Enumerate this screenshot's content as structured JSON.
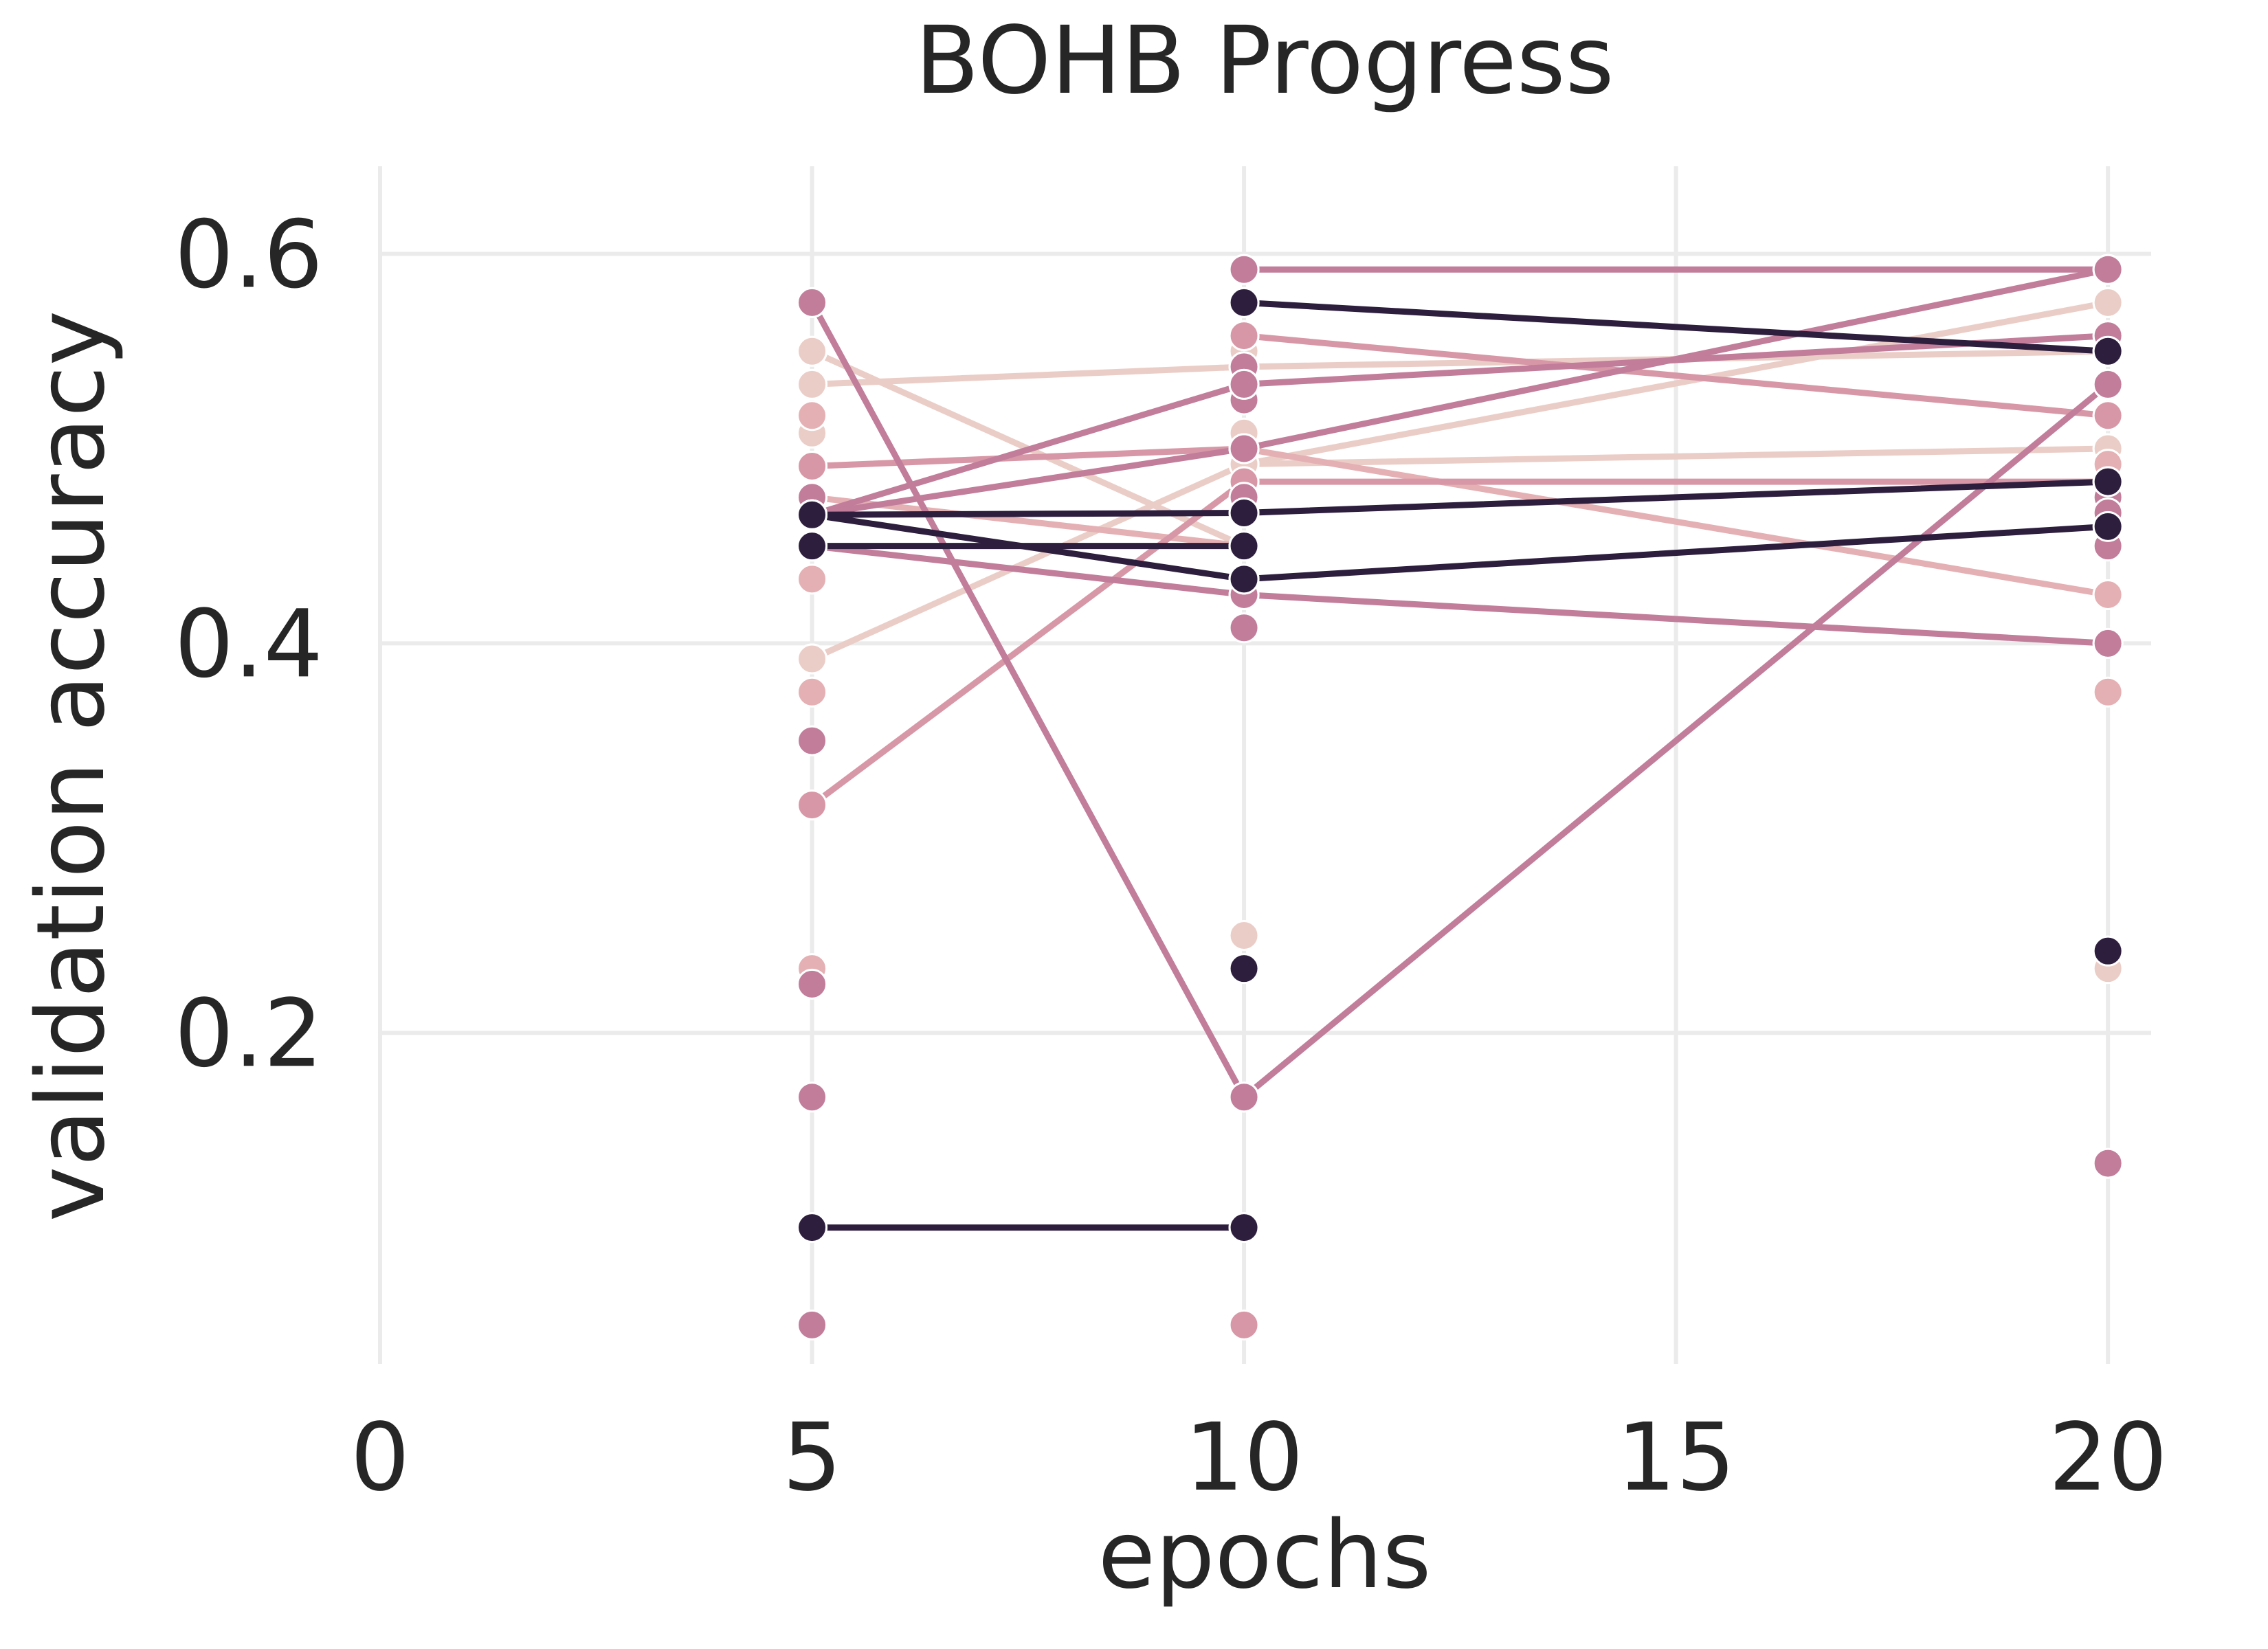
{
  "chart_data": {
    "type": "line",
    "title": "BOHB Progress",
    "xlabel": "epochs",
    "ylabel": "validation accuracy",
    "xlim": [
      0,
      20.5
    ],
    "ylim": [
      0.03,
      0.645
    ],
    "xticks": [
      0,
      5,
      10,
      15,
      20
    ],
    "xtick_labels": [
      "0",
      "5",
      "10",
      "15",
      "20"
    ],
    "yticks": [
      0.2,
      0.4,
      0.6
    ],
    "ytick_labels": [
      "0.2",
      "0.4",
      "0.6"
    ],
    "grid": true,
    "legend": "none",
    "palette": {
      "dark": "#2d1e3e",
      "mauve": "#c17d9a",
      "pink": "#d797a6",
      "rose": "#e4b0b4",
      "light": "#ebcdc7"
    },
    "series": [
      {
        "color": "dark",
        "x": [
          5,
          10
        ],
        "y": [
          0.466,
          0.433
        ]
      },
      {
        "color": "dark",
        "x": [
          10,
          20
        ],
        "y": [
          0.433,
          0.46
        ]
      },
      {
        "color": "dark",
        "x": [
          5,
          10
        ],
        "y": [
          0.45,
          0.45
        ]
      },
      {
        "color": "dark",
        "x": [
          5,
          10,
          20
        ],
        "y": [
          0.466,
          0.467,
          0.483
        ]
      },
      {
        "color": "dark",
        "x": [
          10,
          20
        ],
        "y": [
          0.575,
          0.55
        ]
      },
      {
        "color": "dark",
        "x": [
          5,
          10
        ],
        "y": [
          0.1,
          0.1
        ]
      },
      {
        "color": "mauve",
        "x": [
          5,
          10,
          20
        ],
        "y": [
          0.575,
          0.167,
          0.533
        ]
      },
      {
        "color": "mauve",
        "x": [
          10,
          20
        ],
        "y": [
          0.592,
          0.592
        ]
      },
      {
        "color": "mauve",
        "x": [
          5,
          10,
          20
        ],
        "y": [
          0.466,
          0.533,
          0.558
        ]
      },
      {
        "color": "mauve",
        "x": [
          5,
          10,
          20
        ],
        "y": [
          0.45,
          0.425,
          0.4
        ]
      },
      {
        "color": "mauve",
        "x": [
          5,
          10,
          20
        ],
        "y": [
          0.466,
          0.5,
          0.592
        ]
      },
      {
        "color": "pink",
        "x": [
          5,
          10,
          20
        ],
        "y": [
          0.317,
          0.483,
          0.483
        ]
      },
      {
        "color": "pink",
        "x": [
          5,
          10
        ],
        "y": [
          0.491,
          0.5
        ]
      },
      {
        "color": "pink",
        "x": [
          10,
          20
        ],
        "y": [
          0.558,
          0.517
        ]
      },
      {
        "color": "rose",
        "x": [
          5,
          10
        ],
        "y": [
          0.475,
          0.45
        ]
      },
      {
        "color": "rose",
        "x": [
          10,
          20
        ],
        "y": [
          0.5,
          0.425
        ]
      },
      {
        "color": "light",
        "x": [
          5,
          10,
          20
        ],
        "y": [
          0.533,
          0.542,
          0.55
        ]
      },
      {
        "color": "light",
        "x": [
          5,
          10,
          20
        ],
        "y": [
          0.392,
          0.492,
          0.575
        ]
      },
      {
        "color": "light",
        "x": [
          10,
          20
        ],
        "y": [
          0.492,
          0.5
        ]
      },
      {
        "color": "light",
        "x": [
          5,
          10
        ],
        "y": [
          0.55,
          0.45
        ]
      }
    ],
    "points": [
      {
        "color": "light",
        "x": 5,
        "y": 0.55
      },
      {
        "color": "light",
        "x": 5,
        "y": 0.533
      },
      {
        "color": "rose",
        "x": 5,
        "y": 0.517
      },
      {
        "color": "light",
        "x": 5,
        "y": 0.508
      },
      {
        "color": "pink",
        "x": 5,
        "y": 0.491
      },
      {
        "color": "mauve",
        "x": 5,
        "y": 0.475
      },
      {
        "color": "rose",
        "x": 5,
        "y": 0.433
      },
      {
        "color": "light",
        "x": 5,
        "y": 0.392
      },
      {
        "color": "rose",
        "x": 5,
        "y": 0.375
      },
      {
        "color": "mauve",
        "x": 5,
        "y": 0.35
      },
      {
        "color": "pink",
        "x": 5,
        "y": 0.317
      },
      {
        "color": "rose",
        "x": 5,
        "y": 0.233
      },
      {
        "color": "mauve",
        "x": 5,
        "y": 0.225
      },
      {
        "color": "mauve",
        "x": 5,
        "y": 0.167
      },
      {
        "color": "pink",
        "x": 5,
        "y": 0.1
      },
      {
        "color": "mauve",
        "x": 5,
        "y": 0.05
      },
      {
        "color": "mauve",
        "x": 5,
        "y": 0.45
      },
      {
        "color": "mauve",
        "x": 5,
        "y": 0.466
      },
      {
        "color": "mauve",
        "x": 5,
        "y": 0.575
      },
      {
        "color": "dark",
        "x": 10,
        "y": 0.575
      },
      {
        "color": "mauve",
        "x": 10,
        "y": 0.592
      },
      {
        "color": "pink",
        "x": 10,
        "y": 0.558
      },
      {
        "color": "light",
        "x": 10,
        "y": 0.55
      },
      {
        "color": "mauve",
        "x": 10,
        "y": 0.542
      },
      {
        "color": "mauve",
        "x": 10,
        "y": 0.533
      },
      {
        "color": "mauve",
        "x": 10,
        "y": 0.525
      },
      {
        "color": "light",
        "x": 10,
        "y": 0.508
      },
      {
        "color": "mauve",
        "x": 10,
        "y": 0.5
      },
      {
        "color": "light",
        "x": 10,
        "y": 0.492
      },
      {
        "color": "pink",
        "x": 10,
        "y": 0.483
      },
      {
        "color": "mauve",
        "x": 10,
        "y": 0.475
      },
      {
        "color": "mauve",
        "x": 10,
        "y": 0.467
      },
      {
        "color": "mauve",
        "x": 10,
        "y": 0.45
      },
      {
        "color": "light",
        "x": 10,
        "y": 0.433
      },
      {
        "color": "mauve",
        "x": 10,
        "y": 0.425
      },
      {
        "color": "mauve",
        "x": 10,
        "y": 0.408
      },
      {
        "color": "light",
        "x": 10,
        "y": 0.25
      },
      {
        "color": "dark",
        "x": 10,
        "y": 0.233
      },
      {
        "color": "mauve",
        "x": 10,
        "y": 0.167
      },
      {
        "color": "dark",
        "x": 10,
        "y": 0.1
      },
      {
        "color": "pink",
        "x": 10,
        "y": 0.05
      },
      {
        "color": "mauve",
        "x": 20,
        "y": 0.592
      },
      {
        "color": "light",
        "x": 20,
        "y": 0.575
      },
      {
        "color": "mauve",
        "x": 20,
        "y": 0.558
      },
      {
        "color": "mauve",
        "x": 20,
        "y": 0.55
      },
      {
        "color": "mauve",
        "x": 20,
        "y": 0.533
      },
      {
        "color": "pink",
        "x": 20,
        "y": 0.517
      },
      {
        "color": "light",
        "x": 20,
        "y": 0.5
      },
      {
        "color": "rose",
        "x": 20,
        "y": 0.492
      },
      {
        "color": "pink",
        "x": 20,
        "y": 0.483
      },
      {
        "color": "mauve",
        "x": 20,
        "y": 0.475
      },
      {
        "color": "mauve",
        "x": 20,
        "y": 0.467
      },
      {
        "color": "mauve",
        "x": 20,
        "y": 0.45
      },
      {
        "color": "rose",
        "x": 20,
        "y": 0.425
      },
      {
        "color": "mauve",
        "x": 20,
        "y": 0.4
      },
      {
        "color": "rose",
        "x": 20,
        "y": 0.375
      },
      {
        "color": "dark",
        "x": 20,
        "y": 0.242
      },
      {
        "color": "light",
        "x": 20,
        "y": 0.233
      },
      {
        "color": "mauve",
        "x": 20,
        "y": 0.133
      }
    ]
  }
}
